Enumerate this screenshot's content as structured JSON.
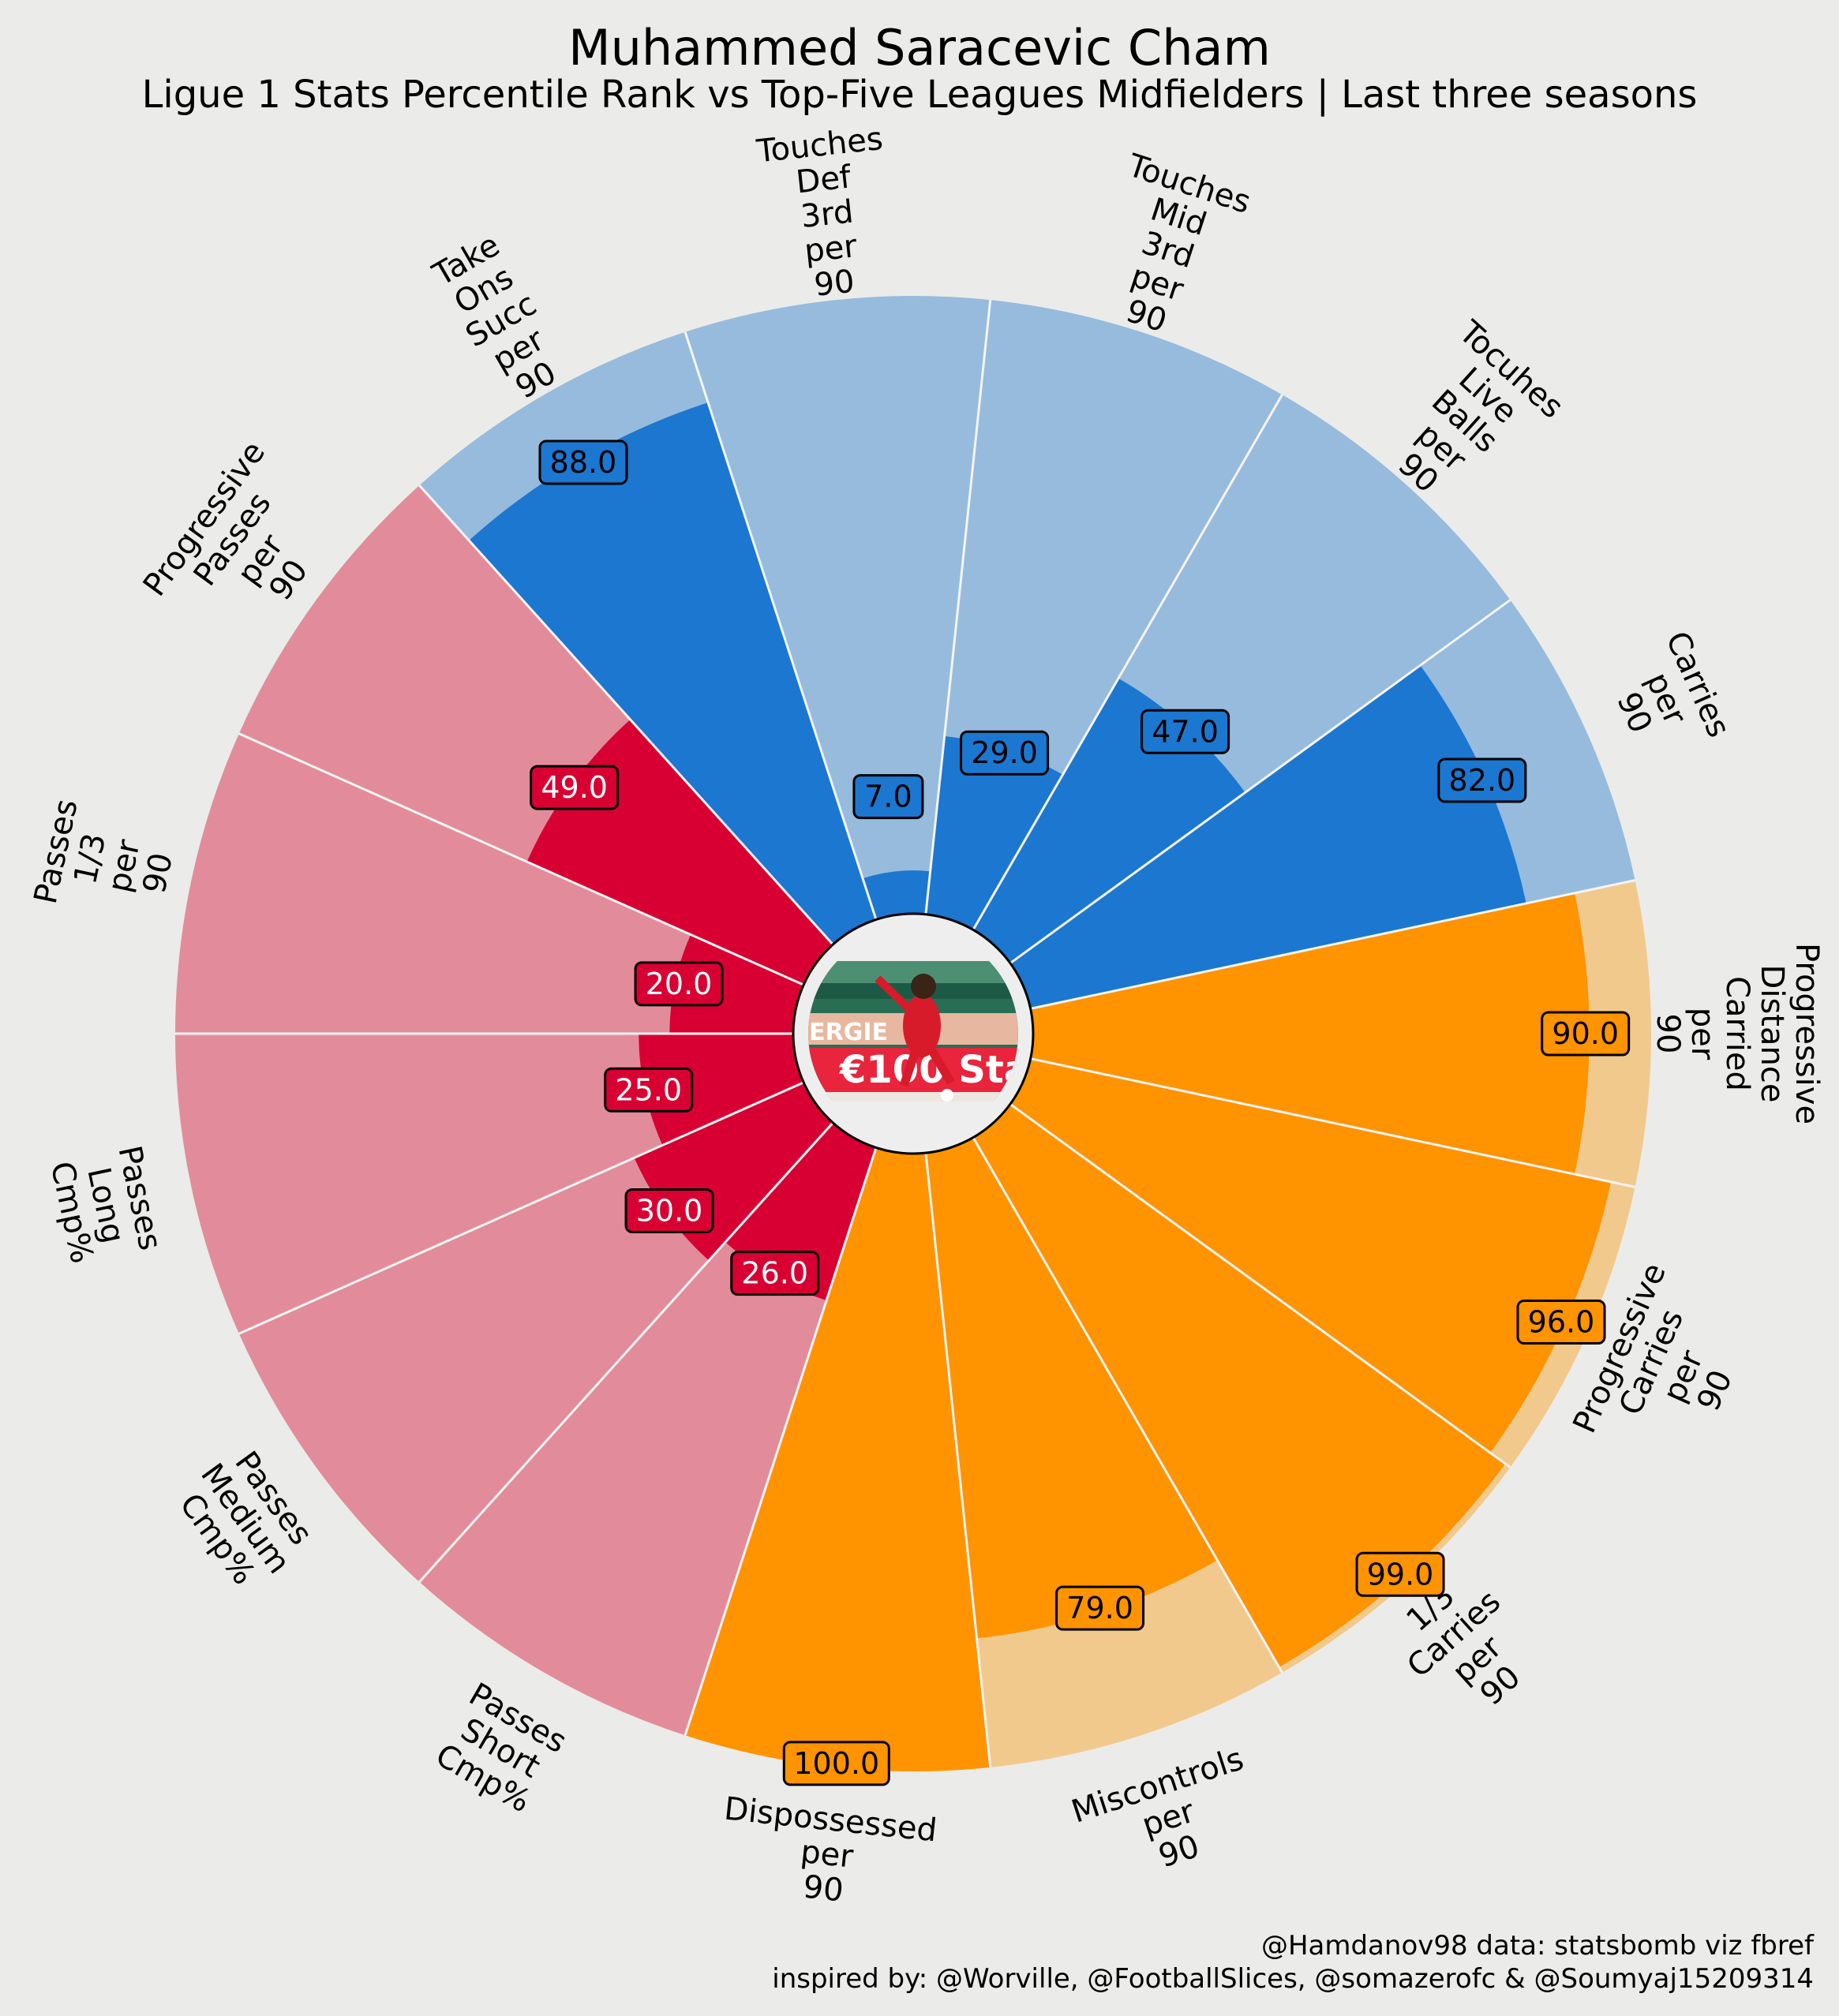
{
  "title": "Muhammed Saracevic Cham",
  "subtitle": "Ligue 1 Stats Percentile Rank vs Top-Five Leagues Midfielders | Last three seasons",
  "credits": {
    "line1": "@Hamdanov98 data: statsbomb viz fbref",
    "line2": "inspired by: @Worville, @FootballSlices, @somazerofc & @Soumyaj15209314"
  },
  "center_image": {
    "description_icon": "player-photo",
    "banner_text": "€100 Sta",
    "sign_text": "NERGIE"
  },
  "colors": {
    "background": "#ebebe9",
    "red_value": "#d80032",
    "red_background": "#e28c9b",
    "blue_value": "#1c77d0",
    "blue_background": "#96bbdd",
    "orange_value": "#ff9300",
    "orange_background": "#f2c98d",
    "divider": "#f4f4f4"
  },
  "chart_data": {
    "type": "pizza",
    "rlim": [
      0,
      100
    ],
    "categories": [
      "Carries per 90",
      "Tocuhes Live Balls per 90",
      "Touches Mid 3rd per 90",
      "Touches Def 3rd per 90",
      "Take Ons Succ per 90",
      "Progressive Passes per 90",
      "Passes 1/3 per 90",
      "Passes Long Cmp%",
      "Passes Medium Cmp%",
      "Passes Short Cmp%",
      "Dispossessed per 90",
      "Miscontrols per 90",
      "1/3 Carries per 90",
      "Progressive Carries per 90",
      "Progressive Distance Carried per 90"
    ],
    "values": [
      82,
      47,
      29,
      7,
      88,
      49,
      20,
      25,
      30,
      26,
      100,
      79,
      99,
      96,
      90
    ],
    "value_labels": [
      "82.0",
      "47.0",
      "29.0",
      "7.0",
      "88.0",
      "49.0",
      "20.0",
      "25.0",
      "30.0",
      "26.0",
      "100.0",
      "79.0",
      "99.0",
      "96.0",
      "90.0"
    ],
    "groups": [
      "blue",
      "blue",
      "blue",
      "blue",
      "blue",
      "red",
      "red",
      "red",
      "red",
      "red",
      "orange",
      "orange",
      "orange",
      "orange",
      "orange"
    ],
    "label_lines": [
      [
        "Carries",
        "per",
        "90"
      ],
      [
        "Tocuhes",
        "Live",
        "Balls",
        "per",
        "90"
      ],
      [
        "Touches",
        "Mid",
        "3rd",
        "per",
        "90"
      ],
      [
        "Touches",
        "Def",
        "3rd",
        "per",
        "90"
      ],
      [
        "Take",
        "Ons",
        "Succ",
        "per",
        "90"
      ],
      [
        "Progressive",
        "Passes",
        "per",
        "90"
      ],
      [
        "Passes",
        "1/3",
        "per",
        "90"
      ],
      [
        "Passes",
        "Long",
        "Cmp%"
      ],
      [
        "Passes",
        "Medium",
        "Cmp%"
      ],
      [
        "Passes",
        "Short",
        "Cmp%"
      ],
      [
        "Dispossessed",
        "per",
        "90"
      ],
      [
        "Miscontrols",
        "per",
        "90"
      ],
      [
        "1/3",
        "Carries",
        "per",
        "90"
      ],
      [
        "Progressive",
        "Carries",
        "per",
        "90"
      ],
      [
        "Progressive",
        "Distance",
        "Carried",
        "per",
        "90"
      ]
    ]
  }
}
